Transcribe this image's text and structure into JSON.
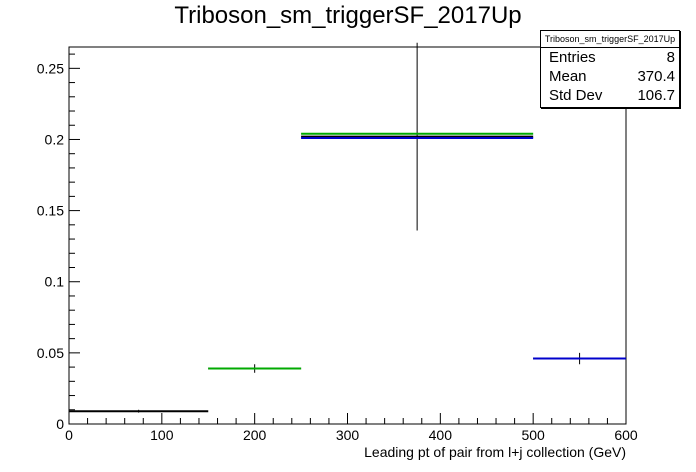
{
  "chart_data": {
    "type": "histogram",
    "title": "Triboson_sm_triggerSF_2017Up",
    "xlabel": "Leading pt of pair from l+j collection (GeV)",
    "ylabel": "",
    "xlim": [
      0,
      600
    ],
    "ylim": [
      0,
      0.265
    ],
    "xticks": [
      0,
      100,
      200,
      300,
      400,
      500,
      600
    ],
    "yticks": [
      0,
      0.05,
      0.1,
      0.15,
      0.2,
      0.25
    ],
    "ytick_labels": [
      "0",
      "0.05",
      "0.1",
      "0.15",
      "0.2",
      "0.25"
    ],
    "series": [
      {
        "color": "#000000",
        "bins": [
          {
            "x_low": 0,
            "x_high": 150,
            "y": 0.009,
            "err": 0.001
          },
          {
            "x_low": 150,
            "x_high": 250,
            "y": 0.039,
            "err": 0.003
          },
          {
            "x_low": 250,
            "x_high": 500,
            "y": 0.202,
            "err": 0.066
          },
          {
            "x_low": 500,
            "x_high": 600,
            "y": 0.046,
            "err": 0.004
          }
        ]
      },
      {
        "color": "#0000cc",
        "bins": [
          {
            "x_low": 250,
            "x_high": 500,
            "y": 0.201
          },
          {
            "x_low": 500,
            "x_high": 600,
            "y": 0.046
          }
        ]
      },
      {
        "color": "#00aa00",
        "bins": [
          {
            "x_low": 150,
            "x_high": 250,
            "y": 0.039
          },
          {
            "x_low": 250,
            "x_high": 500,
            "y": 0.204
          }
        ]
      }
    ],
    "stats": {
      "name": "Triboson_sm_triggerSF_2017Up",
      "rows": [
        {
          "label": "Entries",
          "value": "8"
        },
        {
          "label": "Mean",
          "value": "370.4"
        },
        {
          "label": "Std Dev",
          "value": "106.7"
        }
      ]
    }
  }
}
